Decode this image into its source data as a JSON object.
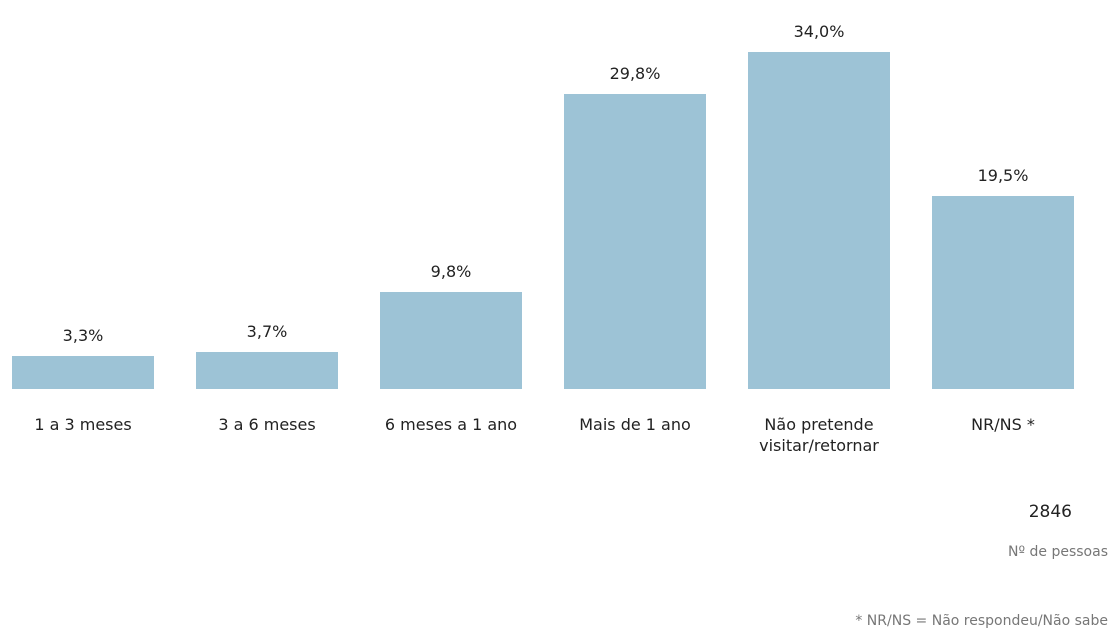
{
  "chart_data": {
    "type": "bar",
    "categories": [
      "1 a 3 meses",
      "3 a 6 meses",
      "6 meses a 1 ano",
      "Mais de 1 ano",
      "Não pretende visitar/retornar",
      "NR/NS *"
    ],
    "values": [
      3.3,
      3.7,
      9.8,
      29.8,
      34.0,
      19.5
    ],
    "value_labels": [
      "3,3%",
      "3,7%",
      "9,8%",
      "29,8%",
      "34,0%",
      "19,5%"
    ],
    "color": "#9dc3d6"
  },
  "total": "2846",
  "total_label": "Nº de pessoas",
  "footnote": "* NR/NS = Não respondeu/Não sabe"
}
